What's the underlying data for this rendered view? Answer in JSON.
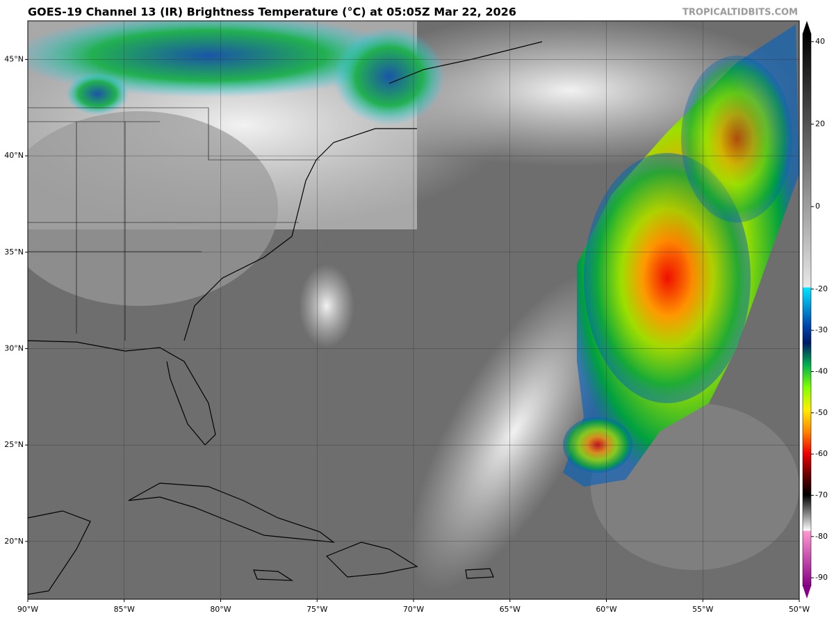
{
  "title": "GOES-19 Channel 13 (IR) Brightness Temperature (°C) at 05:05Z Mar 22, 2026",
  "watermark": "TROPICALTIDBITS.COM",
  "map": {
    "xlim": [
      -90,
      -50
    ],
    "ylim": [
      17,
      47
    ],
    "lon_ticks": [
      {
        "value": -90,
        "label": "90°W"
      },
      {
        "value": -85,
        "label": "85°W"
      },
      {
        "value": -80,
        "label": "80°W"
      },
      {
        "value": -75,
        "label": "75°W"
      },
      {
        "value": -70,
        "label": "70°W"
      },
      {
        "value": -65,
        "label": "65°W"
      },
      {
        "value": -60,
        "label": "60°W"
      },
      {
        "value": -55,
        "label": "55°W"
      },
      {
        "value": -50,
        "label": "50°W"
      }
    ],
    "lat_ticks": [
      {
        "value": 20,
        "label": "20°N"
      },
      {
        "value": 25,
        "label": "25°N"
      },
      {
        "value": 30,
        "label": "30°N"
      },
      {
        "value": 35,
        "label": "35°N"
      },
      {
        "value": 40,
        "label": "40°N"
      },
      {
        "value": 45,
        "label": "45°N"
      }
    ]
  },
  "colorbar": {
    "lim": [
      -92,
      42
    ],
    "ticks": [
      40,
      20,
      0,
      -20,
      -30,
      -40,
      -50,
      -60,
      -70,
      -80,
      -90
    ]
  }
}
